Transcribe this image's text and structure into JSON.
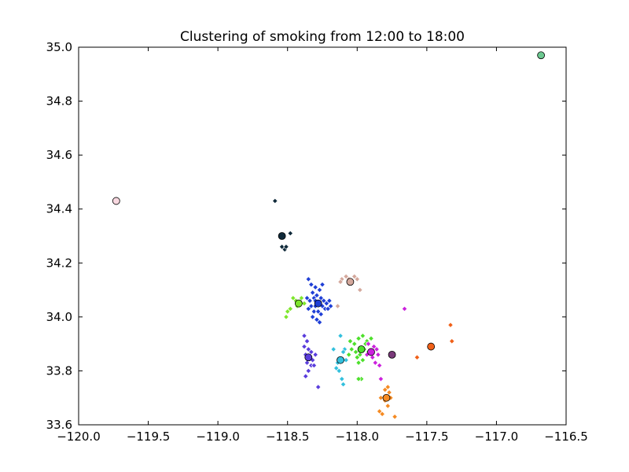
{
  "chart_data": {
    "type": "scatter",
    "title": "Clustering of smoking from 12:00 to 18:00",
    "xlabel": "",
    "ylabel": "",
    "xlim": [
      -120.0,
      -116.5
    ],
    "ylim": [
      33.6,
      35.0
    ],
    "x_ticks": [
      -120.0,
      -119.5,
      -119.0,
      -118.5,
      -118.0,
      -117.5,
      -117.0,
      -116.5
    ],
    "x_tick_labels": [
      "−120.0",
      "−119.5",
      "−119.0",
      "−118.5",
      "−118.0",
      "−117.5",
      "−117.0",
      "−116.5"
    ],
    "y_ticks": [
      33.6,
      33.8,
      34.0,
      34.2,
      34.4,
      34.6,
      34.8,
      35.0
    ],
    "y_tick_labels": [
      "33.6",
      "33.8",
      "34.0",
      "34.2",
      "34.4",
      "34.6",
      "34.8",
      "35.0"
    ],
    "grid": false,
    "legend": false,
    "series": [
      {
        "color": "#1f3fd6",
        "centroid": [
          -118.28,
          34.05
        ],
        "points": [
          [
            -118.35,
            34.14
          ],
          [
            -118.33,
            34.12
          ],
          [
            -118.3,
            34.11
          ],
          [
            -118.27,
            34.1
          ],
          [
            -118.25,
            34.12
          ],
          [
            -118.32,
            34.09
          ],
          [
            -118.36,
            34.07
          ],
          [
            -118.34,
            34.06
          ],
          [
            -118.31,
            34.07
          ],
          [
            -118.29,
            34.08
          ],
          [
            -118.26,
            34.07
          ],
          [
            -118.24,
            34.06
          ],
          [
            -118.22,
            34.05
          ],
          [
            -118.2,
            34.06
          ],
          [
            -118.33,
            34.04
          ],
          [
            -118.3,
            34.04
          ],
          [
            -118.27,
            34.05
          ],
          [
            -118.25,
            34.04
          ],
          [
            -118.23,
            34.03
          ],
          [
            -118.31,
            34.02
          ],
          [
            -118.28,
            34.02
          ],
          [
            -118.26,
            34.01
          ],
          [
            -118.32,
            34.0
          ],
          [
            -118.29,
            33.99
          ],
          [
            -118.27,
            33.98
          ],
          [
            -118.35,
            34.03
          ],
          [
            -118.21,
            34.03
          ],
          [
            -118.38,
            34.05
          ],
          [
            -118.19,
            34.04
          ],
          [
            -118.3,
            34.06
          ]
        ]
      },
      {
        "color": "#5a3ddc",
        "centroid": [
          -118.35,
          33.85
        ],
        "points": [
          [
            -118.38,
            33.93
          ],
          [
            -118.36,
            33.91
          ],
          [
            -118.38,
            33.89
          ],
          [
            -118.35,
            33.88
          ],
          [
            -118.33,
            33.87
          ],
          [
            -118.37,
            33.86
          ],
          [
            -118.34,
            33.85
          ],
          [
            -118.32,
            33.84
          ],
          [
            -118.36,
            33.83
          ],
          [
            -118.33,
            33.82
          ],
          [
            -118.35,
            33.8
          ],
          [
            -118.37,
            33.78
          ],
          [
            -118.3,
            33.86
          ],
          [
            -118.31,
            33.82
          ],
          [
            -118.28,
            33.74
          ]
        ]
      },
      {
        "color": "#7ee62c",
        "centroid": [
          -118.42,
          34.05
        ],
        "points": [
          [
            -118.46,
            34.07
          ],
          [
            -118.44,
            34.06
          ],
          [
            -118.4,
            34.07
          ],
          [
            -118.43,
            34.04
          ],
          [
            -118.48,
            34.03
          ],
          [
            -118.5,
            34.02
          ],
          [
            -118.51,
            34.0
          ],
          [
            -118.38,
            34.05
          ]
        ]
      },
      {
        "color": "#4ee02c",
        "centroid": [
          -117.97,
          33.88
        ],
        "points": [
          [
            -118.05,
            33.91
          ],
          [
            -118.02,
            33.9
          ],
          [
            -117.99,
            33.92
          ],
          [
            -117.96,
            33.93
          ],
          [
            -117.93,
            33.91
          ],
          [
            -117.9,
            33.92
          ],
          [
            -117.88,
            33.89
          ],
          [
            -118.04,
            33.88
          ],
          [
            -118.01,
            33.87
          ],
          [
            -117.98,
            33.86
          ],
          [
            -117.95,
            33.88
          ],
          [
            -117.92,
            33.87
          ],
          [
            -118.0,
            33.85
          ],
          [
            -117.96,
            33.84
          ],
          [
            -117.99,
            33.83
          ],
          [
            -118.06,
            33.86
          ],
          [
            -117.97,
            33.77
          ],
          [
            -117.99,
            33.77
          ],
          [
            -117.86,
            33.88
          ],
          [
            -117.94,
            33.9
          ]
        ]
      },
      {
        "color": "#cc22dd",
        "centroid": [
          -117.9,
          33.87
        ],
        "points": [
          [
            -117.92,
            33.9
          ],
          [
            -117.88,
            33.89
          ],
          [
            -117.9,
            33.87
          ],
          [
            -117.86,
            33.88
          ],
          [
            -117.89,
            33.85
          ],
          [
            -117.85,
            33.86
          ],
          [
            -117.87,
            33.83
          ],
          [
            -117.84,
            33.82
          ],
          [
            -117.93,
            33.86
          ],
          [
            -117.66,
            34.03
          ],
          [
            -117.83,
            33.77
          ]
        ]
      },
      {
        "color": "#7a3a7a",
        "centroid": [
          -117.75,
          33.86
        ],
        "points": []
      },
      {
        "color": "#33c0dd",
        "centroid": [
          -118.12,
          33.84
        ],
        "points": [
          [
            -118.12,
            33.93
          ],
          [
            -118.17,
            33.88
          ],
          [
            -118.09,
            33.88
          ],
          [
            -118.1,
            33.87
          ],
          [
            -118.14,
            33.83
          ],
          [
            -118.15,
            33.81
          ],
          [
            -118.13,
            33.8
          ],
          [
            -118.11,
            33.77
          ],
          [
            -118.1,
            33.75
          ],
          [
            -118.08,
            33.84
          ]
        ]
      },
      {
        "color": "#f58a22",
        "centroid": [
          -117.79,
          33.7
        ],
        "points": [
          [
            -117.78,
            33.74
          ],
          [
            -117.77,
            33.72
          ],
          [
            -117.83,
            33.7
          ],
          [
            -117.8,
            33.69
          ],
          [
            -117.76,
            33.7
          ],
          [
            -117.78,
            33.67
          ],
          [
            -117.84,
            33.65
          ],
          [
            -117.82,
            33.64
          ],
          [
            -117.73,
            33.63
          ],
          [
            -117.8,
            33.73
          ]
        ]
      },
      {
        "color": "#f06018",
        "centroid": [
          -117.47,
          33.89
        ],
        "points": [
          [
            -117.33,
            33.97
          ],
          [
            -117.32,
            33.91
          ],
          [
            -117.57,
            33.85
          ]
        ]
      },
      {
        "color": "#d4a89c",
        "centroid": [
          -118.05,
          34.13
        ],
        "points": [
          [
            -118.11,
            34.14
          ],
          [
            -118.08,
            34.15
          ],
          [
            -118.06,
            34.14
          ],
          [
            -118.02,
            34.15
          ],
          [
            -118.0,
            34.14
          ],
          [
            -117.98,
            34.1
          ],
          [
            -118.12,
            34.13
          ],
          [
            -118.14,
            34.04
          ]
        ]
      },
      {
        "color": "#102a3a",
        "centroid": [
          -118.54,
          34.3
        ],
        "points": [
          [
            -118.59,
            34.43
          ],
          [
            -118.48,
            34.31
          ],
          [
            -118.54,
            34.26
          ],
          [
            -118.52,
            34.25
          ],
          [
            -118.51,
            34.26
          ]
        ]
      },
      {
        "color": "#f8d8e0",
        "centroid": [
          -119.73,
          34.43
        ],
        "points": []
      },
      {
        "color": "#6cc890",
        "centroid": [
          -116.68,
          34.97
        ],
        "points": []
      }
    ]
  }
}
